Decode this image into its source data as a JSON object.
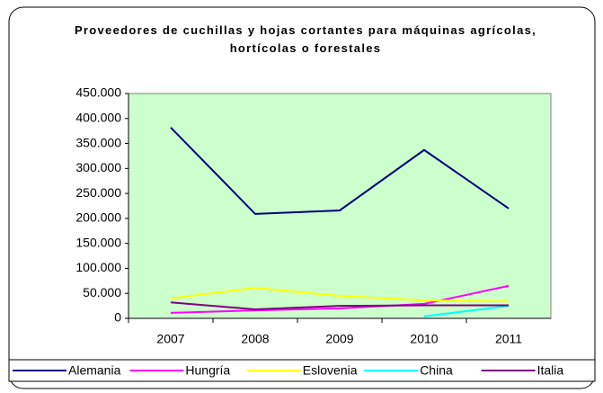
{
  "chart_data": {
    "type": "line",
    "title": "Proveedores de cuchillas y hojas cortantes para máquinas agrícolas, hortícolas o forestales",
    "categories": [
      "2007",
      "2008",
      "2009",
      "2010",
      "2011"
    ],
    "series": [
      {
        "name": "Alemania",
        "color": "#000080",
        "values": [
          382000,
          209000,
          216000,
          337000,
          220000
        ]
      },
      {
        "name": "Hungría",
        "color": "#ff00ff",
        "values": [
          11000,
          16000,
          20000,
          29000,
          65000
        ]
      },
      {
        "name": "Eslovenia",
        "color": "#ffff00",
        "values": [
          40000,
          61000,
          45000,
          36000,
          34000
        ]
      },
      {
        "name": "China",
        "color": "#00ffff",
        "values": [
          null,
          null,
          null,
          4000,
          25000
        ]
      },
      {
        "name": "Italia",
        "color": "#800080",
        "values": [
          32000,
          18000,
          25000,
          26000,
          26000
        ]
      }
    ],
    "ylim": [
      0,
      450000
    ],
    "yticks": [
      0,
      {
        "value": 50000,
        "label": "50.000"
      },
      {
        "value": 100000,
        "label": "100.000"
      },
      {
        "value": 150000,
        "label": "150.000"
      },
      {
        "value": 200000,
        "label": "200.000"
      },
      {
        "value": 250000,
        "label": "250.000"
      },
      {
        "value": 300000,
        "label": "300.000"
      },
      {
        "value": 350000,
        "label": "350.000"
      },
      {
        "value": 400000,
        "label": "400.000"
      },
      {
        "value": 450000,
        "label": "450.000"
      }
    ],
    "plot_background": "#ccffcc",
    "grid": false,
    "legend": "bottom"
  }
}
